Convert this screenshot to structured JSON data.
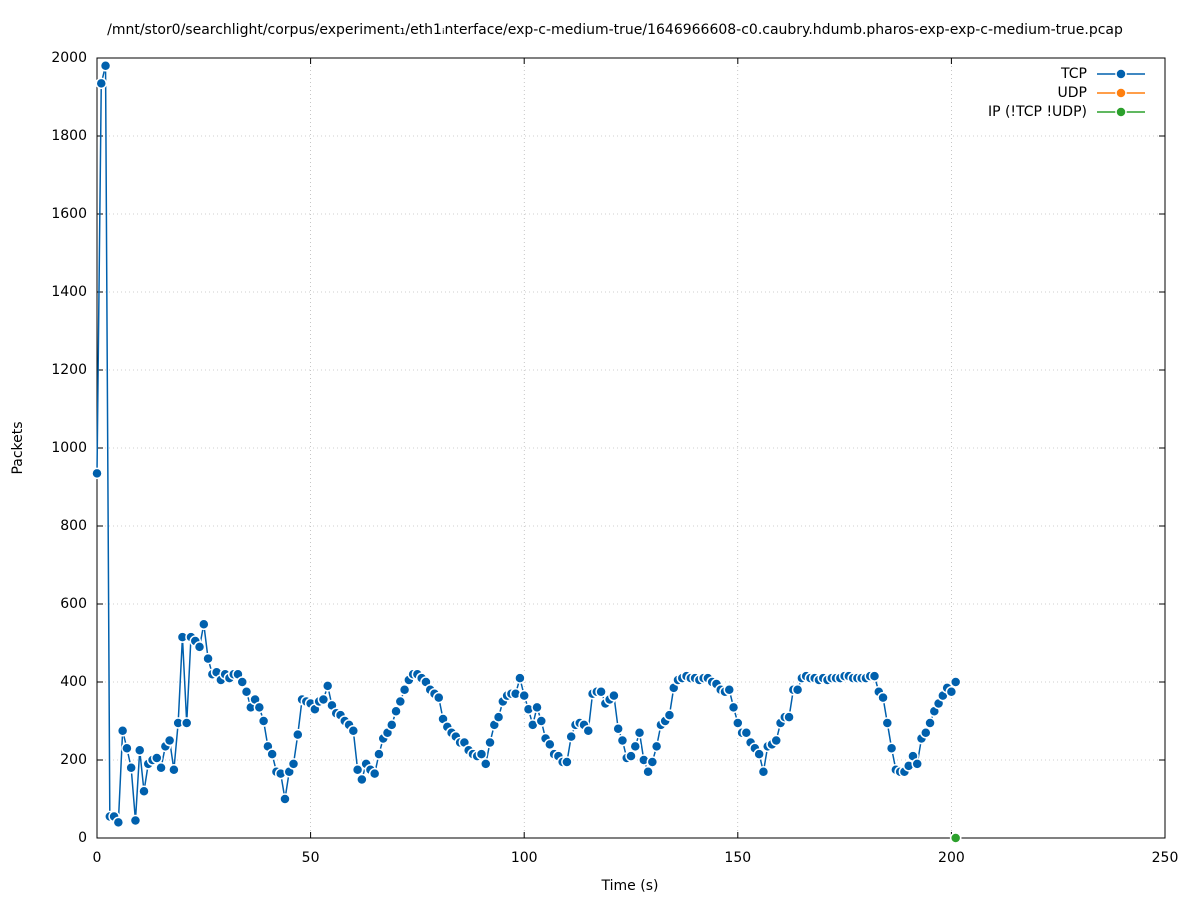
{
  "chart_data": {
    "type": "line",
    "title": "/mnt/stor0/searchlight/corpus/experiment₁/eth1ᵢnterface/exp-c-medium-true/1646966608-c0.caubry.hdumb.pharos-exp-exp-c-medium-true.pcap",
    "x_label": "Time (s)",
    "y_label": "Packets",
    "xlim": [
      0,
      250
    ],
    "xticks": [
      0,
      50,
      100,
      150,
      200,
      250
    ],
    "ylim": [
      0,
      2000
    ],
    "yticks": [
      0,
      200,
      400,
      600,
      800,
      1000,
      1200,
      1400,
      1600,
      1800,
      2000
    ],
    "grid": true,
    "legend": "top-right",
    "series": [
      {
        "name": "TCP",
        "color": "#0060ad",
        "x": [
          0,
          1,
          2,
          3,
          4,
          5,
          6,
          7,
          8,
          9,
          10,
          11,
          12,
          13,
          14,
          15,
          16,
          17,
          18,
          19,
          20,
          21,
          22,
          23,
          24,
          25,
          26,
          27,
          28,
          29,
          30,
          31,
          32,
          33,
          34,
          35,
          36,
          37,
          38,
          39,
          40,
          41,
          42,
          43,
          44,
          45,
          46,
          47,
          48,
          49,
          50,
          51,
          52,
          53,
          54,
          55,
          56,
          57,
          58,
          59,
          60,
          61,
          62,
          63,
          64,
          65,
          66,
          67,
          68,
          69,
          70,
          71,
          72,
          73,
          74,
          75,
          76,
          77,
          78,
          79,
          80,
          81,
          82,
          83,
          84,
          85,
          86,
          87,
          88,
          89,
          90,
          91,
          92,
          93,
          94,
          95,
          96,
          97,
          98,
          99,
          100,
          101,
          102,
          103,
          104,
          105,
          106,
          107,
          108,
          109,
          110,
          111,
          112,
          113,
          114,
          115,
          116,
          117,
          118,
          119,
          120,
          121,
          122,
          123,
          124,
          125,
          126,
          127,
          128,
          129,
          130,
          131,
          132,
          133,
          134,
          135,
          136,
          137,
          138,
          139,
          140,
          141,
          142,
          143,
          144,
          145,
          146,
          147,
          148,
          149,
          150,
          151,
          152,
          153,
          154,
          155,
          156,
          157,
          158,
          159,
          160,
          161,
          162,
          163,
          164,
          165,
          166,
          167,
          168,
          169,
          170,
          171,
          172,
          173,
          174,
          175,
          176,
          177,
          178,
          179,
          180,
          181,
          182,
          183,
          184,
          185,
          186,
          187,
          188,
          189,
          190,
          191,
          192,
          193,
          194,
          195,
          196,
          197,
          198,
          199,
          200,
          201
        ],
        "values": [
          935,
          1935,
          1980,
          55,
          55,
          40,
          275,
          230,
          180,
          45,
          225,
          120,
          190,
          200,
          205,
          180,
          235,
          250,
          175,
          295,
          515,
          295,
          515,
          505,
          490,
          548,
          460,
          420,
          425,
          405,
          420,
          410,
          420,
          420,
          400,
          375,
          335,
          355,
          335,
          300,
          235,
          215,
          170,
          165,
          100,
          170,
          190,
          265,
          355,
          350,
          345,
          330,
          350,
          355,
          390,
          340,
          320,
          315,
          300,
          290,
          275,
          175,
          150,
          190,
          175,
          165,
          215,
          255,
          270,
          290,
          325,
          350,
          380,
          405,
          420,
          420,
          410,
          400,
          380,
          370,
          360,
          305,
          285,
          270,
          260,
          245,
          245,
          225,
          215,
          210,
          215,
          190,
          245,
          290,
          310,
          350,
          365,
          370,
          370,
          410,
          365,
          330,
          290,
          335,
          300,
          255,
          240,
          215,
          210,
          195,
          195,
          260,
          290,
          295,
          290,
          275,
          370,
          375,
          375,
          345,
          355,
          365,
          280,
          250,
          205,
          210,
          235,
          270,
          200,
          170,
          195,
          235,
          290,
          300,
          315,
          385,
          405,
          410,
          415,
          410,
          410,
          405,
          410,
          410,
          400,
          395,
          380,
          375,
          380,
          335,
          295,
          270,
          270,
          245,
          230,
          215,
          170,
          235,
          240,
          250,
          295,
          310,
          310,
          380,
          380,
          410,
          415,
          410,
          410,
          405,
          410,
          405,
          410,
          410,
          410,
          415,
          415,
          410,
          410,
          410,
          410,
          415,
          415,
          375,
          360,
          295,
          230,
          175,
          170,
          170,
          185,
          210,
          190,
          255,
          270,
          295,
          325,
          345,
          365,
          385,
          375,
          400
        ]
      },
      {
        "name": "UDP",
        "color": "#ff7f0e",
        "x": [
          201
        ],
        "values": [
          0
        ]
      },
      {
        "name": "IP (!TCP  !UDP)",
        "color": "#2ca02c",
        "x": [
          201
        ],
        "values": [
          0
        ]
      }
    ]
  }
}
